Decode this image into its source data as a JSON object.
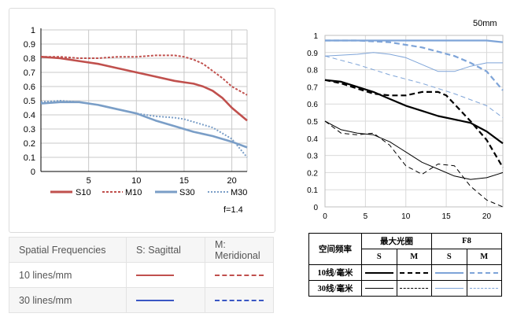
{
  "left_chart": {
    "yticks": [
      "0",
      "0.1",
      "0.2",
      "0.3",
      "0.4",
      "0.5",
      "0.6",
      "0.7",
      "0.8",
      "0.9",
      "1"
    ],
    "xticks": [
      "5",
      "10",
      "15",
      "20"
    ],
    "legend": {
      "s10": "S10",
      "m10": "M10",
      "s30": "S30",
      "m30": "M30"
    },
    "aperture": "f=1.4"
  },
  "right_chart": {
    "focal_length": "50mm",
    "yticks": [
      "0",
      "0.1",
      "0.2",
      "0.3",
      "0.4",
      "0.5",
      "0.6",
      "0.7",
      "0.8",
      "0.9",
      "1"
    ],
    "xticks": [
      "0",
      "5",
      "10",
      "15",
      "20"
    ]
  },
  "freq_table": {
    "headers": [
      "Spatial Frequencies",
      "S: Sagittal",
      "M: Meridional"
    ],
    "rows": [
      "10 lines/mm",
      "30 lines/mm"
    ]
  },
  "cn_table": {
    "row_header": "空间频率",
    "max_aperture": "最大光圈",
    "f8": "F8",
    "s": "S",
    "m": "M",
    "row1": "10线/毫米",
    "row2": "30线/毫米"
  },
  "colors": {
    "red": "#c0504d",
    "steel": "#7a9ec7",
    "blue": "#3a57c4",
    "light_blue": "#7ea4d8"
  },
  "chart_data": [
    {
      "type": "line",
      "title": "",
      "xlabel": "",
      "ylabel": "",
      "xlim": [
        0,
        21.6
      ],
      "ylim": [
        0,
        1
      ],
      "grid": true,
      "legend_position": "bottom",
      "annotation": "f=1.4",
      "series": [
        {
          "name": "S10",
          "style": "solid",
          "color": "#c0504d",
          "x": [
            0,
            2,
            4,
            6,
            8,
            10,
            12,
            14,
            15,
            16,
            17,
            18,
            19,
            20,
            21.6
          ],
          "y": [
            0.81,
            0.8,
            0.78,
            0.76,
            0.73,
            0.7,
            0.67,
            0.64,
            0.63,
            0.62,
            0.6,
            0.57,
            0.52,
            0.45,
            0.36
          ]
        },
        {
          "name": "M10",
          "style": "dashed",
          "color": "#c0504d",
          "x": [
            0,
            2,
            4,
            6,
            8,
            10,
            12,
            14,
            15,
            16,
            17,
            18,
            19,
            20,
            21.6
          ],
          "y": [
            0.81,
            0.81,
            0.8,
            0.8,
            0.81,
            0.81,
            0.82,
            0.82,
            0.81,
            0.79,
            0.76,
            0.71,
            0.66,
            0.6,
            0.54
          ]
        },
        {
          "name": "S30",
          "style": "solid",
          "color": "#7a9ec7",
          "x": [
            0,
            2,
            4,
            6,
            8,
            10,
            12,
            14,
            15,
            16,
            18,
            20,
            21.6
          ],
          "y": [
            0.48,
            0.49,
            0.49,
            0.47,
            0.44,
            0.41,
            0.36,
            0.32,
            0.3,
            0.28,
            0.25,
            0.21,
            0.17
          ]
        },
        {
          "name": "M30",
          "style": "dotted",
          "color": "#7a9ec7",
          "x": [
            0,
            2,
            4,
            6,
            8,
            10,
            12,
            14,
            15,
            16,
            18,
            20,
            21.6
          ],
          "y": [
            0.49,
            0.5,
            0.49,
            0.47,
            0.44,
            0.41,
            0.39,
            0.38,
            0.37,
            0.35,
            0.31,
            0.23,
            0.1
          ]
        }
      ]
    },
    {
      "type": "line",
      "title": "50mm",
      "xlabel": "",
      "ylabel": "",
      "xlim": [
        0,
        22
      ],
      "ylim": [
        0,
        1
      ],
      "grid": true,
      "series": [
        {
          "style": "solid-thick",
          "color": "#000000",
          "x": [
            0,
            2,
            4,
            6,
            8,
            10,
            12,
            14,
            16,
            18,
            20,
            22
          ],
          "y": [
            0.74,
            0.73,
            0.7,
            0.67,
            0.63,
            0.59,
            0.56,
            0.53,
            0.51,
            0.49,
            0.44,
            0.37
          ]
        },
        {
          "style": "dashed-thick",
          "color": "#000000",
          "x": [
            0,
            2,
            4,
            6,
            8,
            10,
            12,
            14,
            15,
            16,
            18,
            20,
            22
          ],
          "y": [
            0.74,
            0.72,
            0.69,
            0.66,
            0.65,
            0.65,
            0.67,
            0.67,
            0.65,
            0.6,
            0.5,
            0.39,
            0.23
          ]
        },
        {
          "style": "solid-thin",
          "color": "#000000",
          "x": [
            0,
            2,
            4,
            6,
            8,
            10,
            12,
            14,
            16,
            18,
            20,
            22
          ],
          "y": [
            0.5,
            0.45,
            0.43,
            0.42,
            0.38,
            0.32,
            0.26,
            0.22,
            0.18,
            0.16,
            0.17,
            0.2
          ]
        },
        {
          "style": "dashed-thin",
          "color": "#000000",
          "x": [
            0,
            2,
            4,
            6,
            8,
            10,
            12,
            14,
            16,
            18,
            20,
            22
          ],
          "y": [
            0.5,
            0.43,
            0.42,
            0.43,
            0.36,
            0.24,
            0.19,
            0.25,
            0.24,
            0.12,
            0.04,
            0.0
          ]
        },
        {
          "style": "solid-thick",
          "color": "#7ea4d8",
          "x": [
            0,
            4,
            8,
            12,
            16,
            20,
            22
          ],
          "y": [
            0.97,
            0.97,
            0.97,
            0.97,
            0.97,
            0.97,
            0.96
          ]
        },
        {
          "style": "dashed-thick",
          "color": "#7ea4d8",
          "x": [
            0,
            4,
            8,
            12,
            16,
            18,
            20,
            22
          ],
          "y": [
            0.97,
            0.97,
            0.96,
            0.93,
            0.88,
            0.84,
            0.79,
            0.68
          ]
        },
        {
          "style": "solid-thin",
          "color": "#7ea4d8",
          "x": [
            0,
            4,
            6,
            8,
            10,
            12,
            14,
            16,
            18,
            20,
            22
          ],
          "y": [
            0.88,
            0.89,
            0.9,
            0.89,
            0.87,
            0.83,
            0.79,
            0.79,
            0.82,
            0.84,
            0.84
          ]
        },
        {
          "style": "dashed-thin",
          "color": "#7ea4d8",
          "x": [
            0,
            4,
            8,
            12,
            16,
            20,
            22
          ],
          "y": [
            0.88,
            0.83,
            0.77,
            0.72,
            0.66,
            0.59,
            0.52
          ]
        }
      ]
    }
  ]
}
